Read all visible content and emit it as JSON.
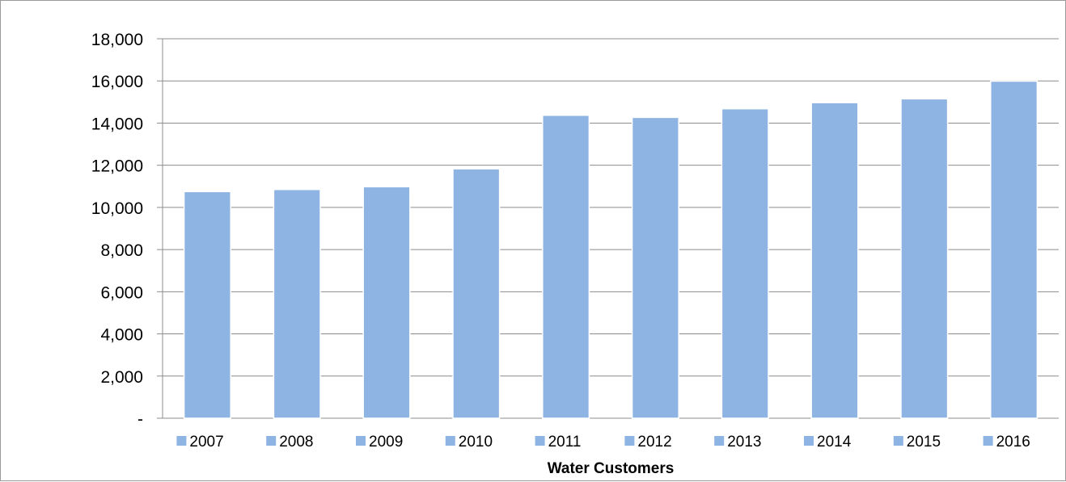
{
  "chart_data": {
    "type": "bar",
    "title": "",
    "xlabel": "Water Customers",
    "ylabel": "",
    "categories": [
      "2007",
      "2008",
      "2009",
      "2010",
      "2011",
      "2012",
      "2013",
      "2014",
      "2015",
      "2016"
    ],
    "values": [
      10750,
      10850,
      10980,
      11830,
      14370,
      14270,
      14680,
      14970,
      15150,
      15990
    ],
    "ylim": [
      0,
      18000
    ],
    "y_tick_labels": [
      "-",
      "2,000",
      "4,000",
      "6,000",
      "8,000",
      "10,000",
      "12,000",
      "14,000",
      "16,000",
      "18,000"
    ],
    "grid": true,
    "legend": "bottom",
    "bar_color": "#8EB4E3"
  }
}
